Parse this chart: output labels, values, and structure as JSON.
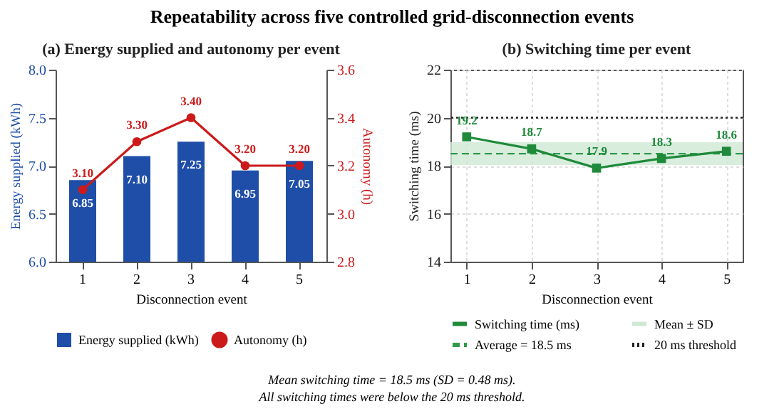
{
  "chart_data": [
    {
      "type": "bar",
      "title": "(a) Energy supplied and autonomy per event",
      "xlabel": "Disconnection event",
      "ylabel": "Energy supplied (kWh)",
      "y2label": "Autonomy (h)",
      "categories": [
        "1",
        "2",
        "3",
        "4",
        "5"
      ],
      "series": [
        {
          "name": "Energy supplied (kWh)",
          "color": "#1f4ea8",
          "values": [
            6.85,
            7.1,
            7.25,
            6.95,
            7.05
          ],
          "value_labels": [
            "6.85",
            "7.10",
            "7.25",
            "6.95",
            "7.05"
          ]
        },
        {
          "name": "Autonomy (h)",
          "type": "line",
          "axis": "y2",
          "marker": "circle",
          "color": "#cc1a1a",
          "values": [
            3.1,
            3.3,
            3.4,
            3.2,
            3.2
          ],
          "value_labels": [
            "3.10",
            "3.30",
            "3.40",
            "3.20",
            "3.20"
          ]
        }
      ],
      "ylim": [
        6.0,
        8.0
      ],
      "yticks": [
        {
          "value": 6,
          "label": "6.0"
        },
        6.5,
        {
          "value": 7,
          "label": "7.0"
        },
        7.5,
        {
          "value": 8,
          "label": "8.0"
        }
      ],
      "y2lim": [
        2.8,
        3.6
      ],
      "y2ticks": [
        2.8,
        {
          "value": 3,
          "label": "3.0"
        },
        3.2,
        3.4,
        3.6
      ],
      "legend": "bottom"
    },
    {
      "type": "line",
      "title": "(b) Switching time per event",
      "xlabel": "Disconnection event",
      "ylabel": "Switching time (ms)",
      "categories": [
        "1",
        "2",
        "3",
        "4",
        "5"
      ],
      "series": [
        {
          "name": "Switching time (ms)",
          "color": "#1e8a3a",
          "values": [
            19.2,
            18.7,
            17.9,
            18.3,
            18.6
          ]
        }
      ],
      "marker": "square",
      "line_style": "solid",
      "data_labels": true,
      "ylim": [
        14,
        22
      ],
      "yticks": [
        14,
        16,
        18,
        20,
        22
      ],
      "grid": true,
      "legend": "bottom",
      "bands": [
        {
          "axis": "y",
          "from": 18.02,
          "to": 18.98,
          "label": "Mean ± SD",
          "color": "#cfe8d4"
        }
      ],
      "ref_lines": [
        {
          "axis": "y",
          "value": 18.5,
          "label": "Average = 18.5 ms",
          "color": "#2e9a4a",
          "line_style": "dashed"
        },
        {
          "axis": "y",
          "value": 20,
          "label": "20 ms threshold",
          "color": "#222222",
          "line_style": "dotted"
        }
      ]
    },
    {
      "type": "other",
      "title": "Repeatability across five controlled grid-disconnection events",
      "annotations": [
        "Mean switching time = 18.5 ms (SD = 0.48 ms).",
        "All switching times were below the 20 ms threshold."
      ]
    }
  ]
}
